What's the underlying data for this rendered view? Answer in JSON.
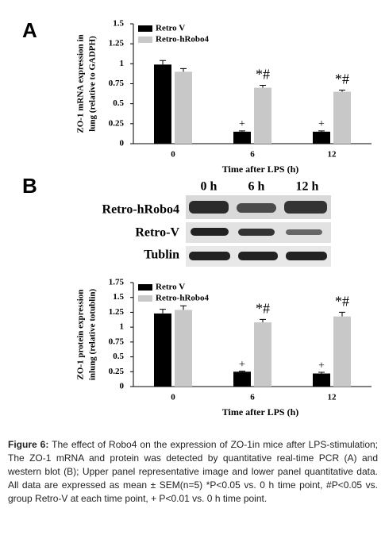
{
  "panel_labels": [
    "A",
    "B"
  ],
  "chart_data": [
    {
      "type": "bar",
      "ylabel": [
        "ZO-1 mRNA expression in",
        "lung (relative to GADPH)"
      ],
      "xlabel": "Time after LPS (h)",
      "categories": [
        "0",
        "6",
        "12"
      ],
      "series": [
        {
          "name": "Retro V",
          "color": "#000000",
          "values": [
            0.99,
            0.15,
            0.15
          ],
          "errors": [
            0.05,
            0.01,
            0.01
          ],
          "markers": [
            null,
            "+",
            "+"
          ]
        },
        {
          "name": "Retro-hRobo4",
          "color": "#c8c8c8",
          "values": [
            0.9,
            0.7,
            0.65
          ],
          "errors": [
            0.04,
            0.03,
            0.02
          ],
          "markers": [
            null,
            "*#",
            "*#"
          ]
        }
      ],
      "ylim": [
        0,
        1.5
      ],
      "yticks": [
        0,
        0.25,
        0.5,
        0.75,
        1,
        1.25,
        1.5
      ]
    },
    {
      "type": "bar",
      "ylabel": [
        "ZO-1 protein expression",
        "inlung (relative totublin)"
      ],
      "xlabel": "Time after LPS (h)",
      "categories": [
        "0",
        "6",
        "12"
      ],
      "series": [
        {
          "name": "Retro V",
          "color": "#000000",
          "values": [
            1.23,
            0.25,
            0.22
          ],
          "errors": [
            0.07,
            0.01,
            0.02
          ],
          "markers": [
            null,
            "+",
            "+"
          ]
        },
        {
          "name": "Retro-hRobo4",
          "color": "#c8c8c8",
          "values": [
            1.29,
            1.08,
            1.18
          ],
          "errors": [
            0.07,
            0.05,
            0.07
          ],
          "markers": [
            null,
            "*#",
            "*#"
          ]
        }
      ],
      "ylim": [
        0,
        1.75
      ],
      "yticks": [
        0,
        0.25,
        0.5,
        0.75,
        1,
        1.25,
        1.5,
        1.75
      ]
    }
  ],
  "blot": {
    "lanes": [
      "0 h",
      "6 h",
      "12 h"
    ],
    "rows": [
      "Retro-hRobo4",
      "Retro-V",
      "Tublin"
    ]
  },
  "caption": {
    "label": "Figure 6:",
    "text": "The effect of Robo4 on the expression of ZO-1in mice after LPS-stimulation; The ZO-1 mRNA and protein was detected by quantitative real-time PCR (A) and western blot (B); Upper panel representative image and lower panel quantitative data. All data are expressed as mean ± SEM(n=5) *P<0.05 vs. 0 h time point, #P<0.05 vs. group Retro-V at each time point, + P<0.01 vs. 0 h time point."
  }
}
